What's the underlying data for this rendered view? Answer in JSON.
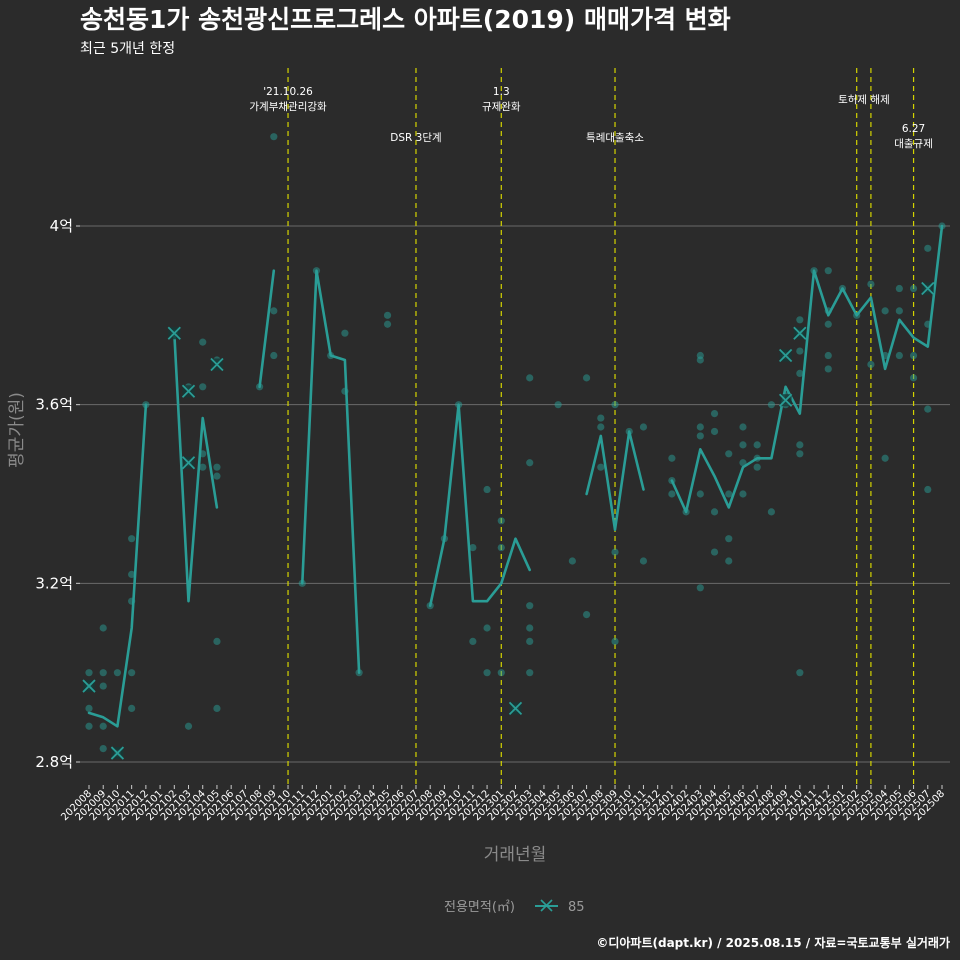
{
  "title": "송천동1가 송천광신프로그레스 아파트(2019) 매매가격 변화",
  "subtitle": "최근 5개년 한정",
  "caption": "©디아파트(dapt.kr) / 2025.08.15 / 자료=국토교통부 실거래가",
  "chart_data": {
    "type": "line",
    "title": "송천동1가 송천광신프로그레스 아파트(2019) 매매가격 변화",
    "subtitle": "최근 5개년 한정",
    "xlabel": "거래년월",
    "ylabel": "평균가(원)",
    "ylim": [
      2.75,
      4.12
    ],
    "yticks": [
      2.8,
      3.2,
      3.6,
      4.0
    ],
    "ytick_labels": [
      "2.8억",
      "3.2억",
      "3.6억",
      "4억"
    ],
    "x_categories": [
      "202008",
      "202009",
      "202010",
      "202011",
      "202012",
      "202101",
      "202102",
      "202103",
      "202104",
      "202105",
      "202106",
      "202107",
      "202108",
      "202109",
      "202110",
      "202111",
      "202112",
      "202201",
      "202202",
      "202203",
      "202204",
      "202205",
      "202206",
      "202207",
      "202208",
      "202209",
      "202210",
      "202211",
      "202212",
      "202301",
      "202302",
      "202303",
      "202304",
      "202305",
      "202306",
      "202307",
      "202308",
      "202309",
      "202310",
      "202311",
      "202312",
      "202401",
      "202402",
      "202403",
      "202404",
      "202405",
      "202406",
      "202407",
      "202408",
      "202409",
      "202410",
      "202411",
      "202412",
      "202501",
      "202502",
      "202503",
      "202504",
      "202505",
      "202506",
      "202507",
      "202508"
    ],
    "legend": {
      "title": "전용면적(㎡)",
      "items": [
        {
          "label": "85",
          "color": "#2a9d96"
        }
      ]
    },
    "series": [
      {
        "name": "85",
        "color": "#2a9d96",
        "segments": [
          [
            [
              "202008",
              2.91
            ],
            [
              "202009",
              2.9
            ],
            [
              "202010",
              2.88
            ],
            [
              "202011",
              3.1
            ],
            [
              "202012",
              3.6
            ]
          ],
          [
            [
              "202102",
              3.76
            ],
            [
              "202103",
              3.16
            ],
            [
              "202104",
              3.57
            ],
            [
              "202105",
              3.37
            ]
          ],
          [
            [
              "202108",
              3.64
            ],
            [
              "202109",
              3.9
            ]
          ],
          [
            [
              "202111",
              3.2
            ],
            [
              "202112",
              3.9
            ],
            [
              "202201",
              3.71
            ],
            [
              "202202",
              3.7
            ],
            [
              "202203",
              3.0
            ]
          ],
          [
            [
              "202208",
              3.15
            ],
            [
              "202209",
              3.3
            ],
            [
              "202210",
              3.6
            ],
            [
              "202211",
              3.16
            ],
            [
              "202212",
              3.16
            ],
            [
              "202301",
              3.2
            ],
            [
              "202302",
              3.3
            ],
            [
              "202303",
              3.23
            ]
          ],
          [
            [
              "202307",
              3.4
            ],
            [
              "202308",
              3.53
            ],
            [
              "202309",
              3.32
            ],
            [
              "202310",
              3.54
            ],
            [
              "202311",
              3.41
            ]
          ],
          [
            [
              "202401",
              3.43
            ],
            [
              "202402",
              3.36
            ],
            [
              "202403",
              3.5
            ],
            [
              "202404",
              3.44
            ],
            [
              "202405",
              3.37
            ],
            [
              "202406",
              3.46
            ],
            [
              "202407",
              3.48
            ],
            [
              "202408",
              3.48
            ],
            [
              "202409",
              3.64
            ],
            [
              "202410",
              3.58
            ],
            [
              "202411",
              3.9
            ],
            [
              "202412",
              3.8
            ],
            [
              "202501",
              3.86
            ],
            [
              "202502",
              3.8
            ],
            [
              "202503",
              3.84
            ],
            [
              "202504",
              3.68
            ],
            [
              "202505",
              3.79
            ],
            [
              "202506",
              3.75
            ],
            [
              "202507",
              3.73
            ],
            [
              "202508",
              4.0
            ]
          ]
        ],
        "points": [
          [
            "202008",
            3.0
          ],
          [
            "202008",
            2.92
          ],
          [
            "202008",
            2.88
          ],
          [
            "202008",
            2.97
          ],
          [
            "202009",
            3.1
          ],
          [
            "202009",
            2.97
          ],
          [
            "202009",
            2.88
          ],
          [
            "202009",
            3.0
          ],
          [
            "202009",
            2.83
          ],
          [
            "202010",
            3.0
          ],
          [
            "202010",
            2.82
          ],
          [
            "202011",
            3.3
          ],
          [
            "202011",
            3.22
          ],
          [
            "202011",
            3.16
          ],
          [
            "202011",
            3.0
          ],
          [
            "202011",
            2.92
          ],
          [
            "202012",
            3.6
          ],
          [
            "202102",
            3.76
          ],
          [
            "202103",
            3.64
          ],
          [
            "202103",
            3.47
          ],
          [
            "202103",
            2.88
          ],
          [
            "202104",
            3.74
          ],
          [
            "202104",
            3.49
          ],
          [
            "202104",
            3.46
          ],
          [
            "202104",
            3.64
          ],
          [
            "202105",
            3.7
          ],
          [
            "202105",
            3.46
          ],
          [
            "202105",
            3.44
          ],
          [
            "202105",
            3.07
          ],
          [
            "202105",
            2.92
          ],
          [
            "202108",
            3.64
          ],
          [
            "202109",
            4.2
          ],
          [
            "202109",
            3.81
          ],
          [
            "202109",
            3.71
          ],
          [
            "202111",
            3.2
          ],
          [
            "202112",
            3.9
          ],
          [
            "202201",
            3.71
          ],
          [
            "202202",
            3.76
          ],
          [
            "202202",
            3.63
          ],
          [
            "202203",
            3.0
          ],
          [
            "202205",
            3.8
          ],
          [
            "202205",
            3.78
          ],
          [
            "202208",
            3.15
          ],
          [
            "202209",
            3.3
          ],
          [
            "202210",
            3.6
          ],
          [
            "202211",
            3.28
          ],
          [
            "202211",
            3.07
          ],
          [
            "202212",
            3.41
          ],
          [
            "202212",
            3.1
          ],
          [
            "202212",
            3.0
          ],
          [
            "202301",
            3.34
          ],
          [
            "202301",
            3.28
          ],
          [
            "202301",
            3.0
          ],
          [
            "202302",
            2.92
          ],
          [
            "202303",
            3.66
          ],
          [
            "202303",
            3.47
          ],
          [
            "202303",
            3.15
          ],
          [
            "202303",
            3.1
          ],
          [
            "202303",
            3.07
          ],
          [
            "202303",
            3.0
          ],
          [
            "202305",
            3.6
          ],
          [
            "202306",
            3.25
          ],
          [
            "202307",
            3.66
          ],
          [
            "202307",
            3.13
          ],
          [
            "202308",
            3.57
          ],
          [
            "202308",
            3.55
          ],
          [
            "202308",
            3.46
          ],
          [
            "202309",
            3.6
          ],
          [
            "202309",
            3.27
          ],
          [
            "202309",
            3.07
          ],
          [
            "202310",
            3.54
          ],
          [
            "202311",
            3.55
          ],
          [
            "202311",
            3.25
          ],
          [
            "202401",
            3.48
          ],
          [
            "202401",
            3.43
          ],
          [
            "202401",
            3.4
          ],
          [
            "202402",
            3.36
          ],
          [
            "202403",
            3.71
          ],
          [
            "202403",
            3.7
          ],
          [
            "202403",
            3.55
          ],
          [
            "202403",
            3.53
          ],
          [
            "202403",
            3.4
          ],
          [
            "202403",
            3.19
          ],
          [
            "202404",
            3.58
          ],
          [
            "202404",
            3.54
          ],
          [
            "202404",
            3.36
          ],
          [
            "202404",
            3.27
          ],
          [
            "202405",
            3.49
          ],
          [
            "202405",
            3.4
          ],
          [
            "202405",
            3.3
          ],
          [
            "202405",
            3.25
          ],
          [
            "202406",
            3.55
          ],
          [
            "202406",
            3.51
          ],
          [
            "202406",
            3.47
          ],
          [
            "202406",
            3.4
          ],
          [
            "202407",
            3.51
          ],
          [
            "202407",
            3.48
          ],
          [
            "202407",
            3.46
          ],
          [
            "202408",
            3.36
          ],
          [
            "202408",
            3.6
          ],
          [
            "202409",
            3.71
          ],
          [
            "202409",
            3.62
          ],
          [
            "202409",
            3.6
          ],
          [
            "202410",
            3.79
          ],
          [
            "202410",
            3.76
          ],
          [
            "202410",
            3.72
          ],
          [
            "202410",
            3.67
          ],
          [
            "202410",
            3.51
          ],
          [
            "202410",
            3.49
          ],
          [
            "202410",
            3.0
          ],
          [
            "202411",
            3.9
          ],
          [
            "202412",
            3.9
          ],
          [
            "202412",
            3.81
          ],
          [
            "202412",
            3.78
          ],
          [
            "202412",
            3.71
          ],
          [
            "202412",
            3.68
          ],
          [
            "202501",
            3.86
          ],
          [
            "202502",
            3.8
          ],
          [
            "202503",
            3.87
          ],
          [
            "202503",
            3.69
          ],
          [
            "202504",
            3.81
          ],
          [
            "202504",
            3.71
          ],
          [
            "202504",
            3.48
          ],
          [
            "202505",
            3.86
          ],
          [
            "202505",
            3.81
          ],
          [
            "202505",
            3.71
          ],
          [
            "202506",
            3.86
          ],
          [
            "202506",
            3.71
          ],
          [
            "202506",
            3.66
          ],
          [
            "202507",
            3.95
          ],
          [
            "202507",
            3.86
          ],
          [
            "202507",
            3.78
          ],
          [
            "202507",
            3.59
          ],
          [
            "202507",
            3.41
          ],
          [
            "202508",
            4.0
          ]
        ],
        "x_markers": [
          [
            "202008",
            2.97
          ],
          [
            "202010",
            2.82
          ],
          [
            "202102",
            3.76
          ],
          [
            "202103",
            3.63
          ],
          [
            "202103",
            3.47
          ],
          [
            "202105",
            3.69
          ],
          [
            "202302",
            2.92
          ],
          [
            "202409",
            3.71
          ],
          [
            "202409",
            3.61
          ],
          [
            "202410",
            3.76
          ],
          [
            "202507",
            3.86
          ]
        ]
      }
    ],
    "events": [
      {
        "x": "202110",
        "lines": [
          "'21.10.26",
          "가계부채관리강화"
        ],
        "row": 1
      },
      {
        "x": "202207",
        "lines": [
          "DSR 3단계"
        ],
        "row": 2
      },
      {
        "x": "202301",
        "lines": [
          "1.3",
          "규제완화"
        ],
        "row": 1
      },
      {
        "x": "202309",
        "lines": [
          "특례대출축소"
        ],
        "row": 2
      },
      {
        "x": "202502",
        "lines": [],
        "row": 1
      },
      {
        "x": "202503",
        "lines": [
          "토허제 해제"
        ],
        "row": 1,
        "align": "mid"
      },
      {
        "x": "202506",
        "lines": [
          "6.27",
          "대출규제"
        ],
        "row": 2
      }
    ]
  }
}
